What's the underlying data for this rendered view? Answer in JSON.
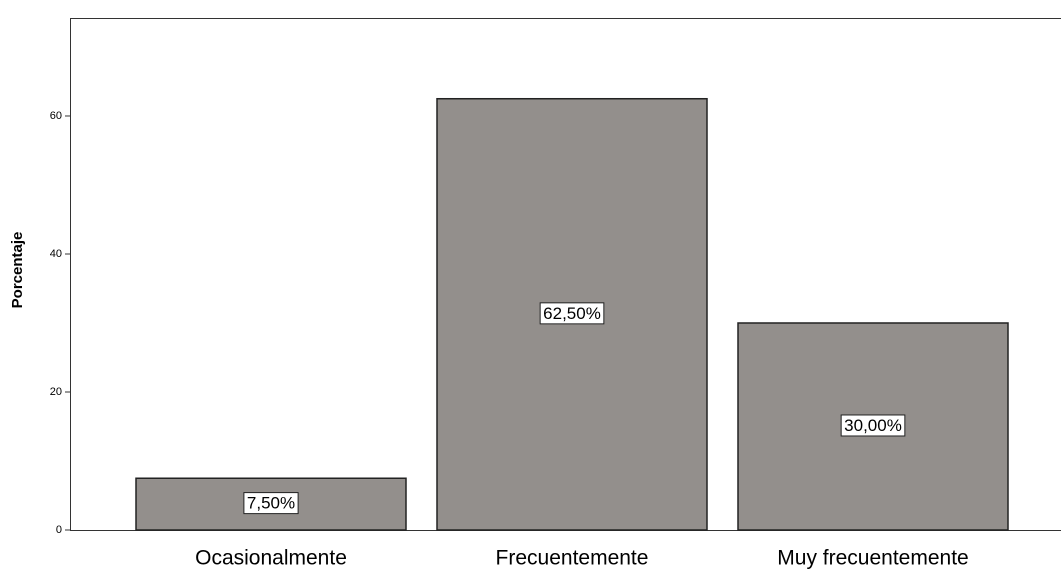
{
  "chart_data": {
    "type": "bar",
    "y_label": "Porcentaje",
    "categories": [
      "Ocasionalmente",
      "Frecuentemente",
      "Muy frecuentemente"
    ],
    "values": [
      7.5,
      62.5,
      30
    ],
    "value_labels": [
      "7,50%",
      "62,50%",
      "30,00%"
    ],
    "color": "#938f8c",
    "ylim": [
      0,
      74.2
    ],
    "yticks": [
      0,
      20,
      40,
      60
    ],
    "grid": false
  }
}
